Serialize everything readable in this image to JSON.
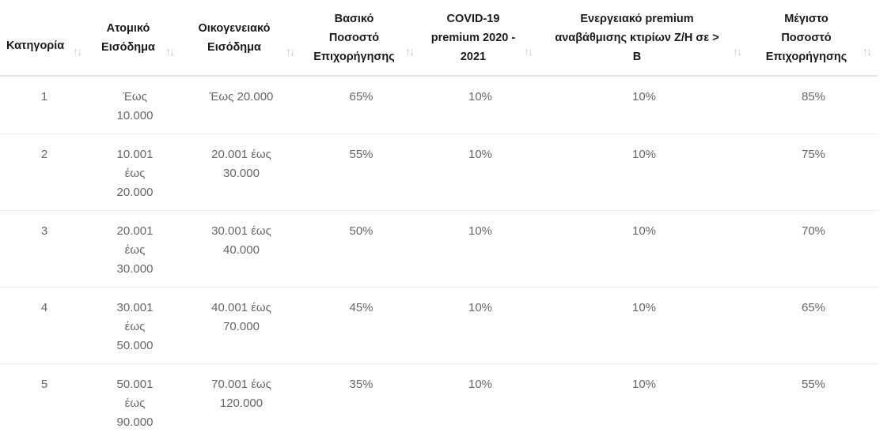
{
  "table": {
    "headers": [
      "Κατηγορία",
      "Ατομικό Εισόδημα",
      "Οικογενειακό Εισόδημα",
      "Βασικό Ποσοστό Επιχορήγησης",
      "COVID-19 premium 2020 - 2021",
      "Ενεργειακό premium αναβάθμισης κτιρίων Ζ/Η σε > Β",
      "Μέγιστο Ποσοστό Επιχορήγησης"
    ],
    "sort_icon": "sort-arrows-icon",
    "sort_glyph": "↑↓",
    "rows": [
      [
        "1",
        "Έως 10.000",
        "Έως 20.000",
        "65%",
        "10%",
        "10%",
        "85%"
      ],
      [
        "2",
        "10.001 έως 20.000",
        "20.001 έως 30.000",
        "55%",
        "10%",
        "10%",
        "75%"
      ],
      [
        "3",
        "20.001 έως 30.000",
        "30.001 έως 40.000",
        "50%",
        "10%",
        "10%",
        "70%"
      ],
      [
        "4",
        "30.001 έως 50.000",
        "40.001 έως 70.000",
        "45%",
        "10%",
        "10%",
        "65%"
      ],
      [
        "5",
        "50.001 έως 90.000",
        "70.001 έως 120.000",
        "35%",
        "10%",
        "10%",
        "55%"
      ]
    ]
  },
  "colors": {
    "header_text": "#1a1a1a",
    "cell_text": "#666666",
    "sort_icon": "#c7c7c7",
    "row_border": "#ececec"
  }
}
